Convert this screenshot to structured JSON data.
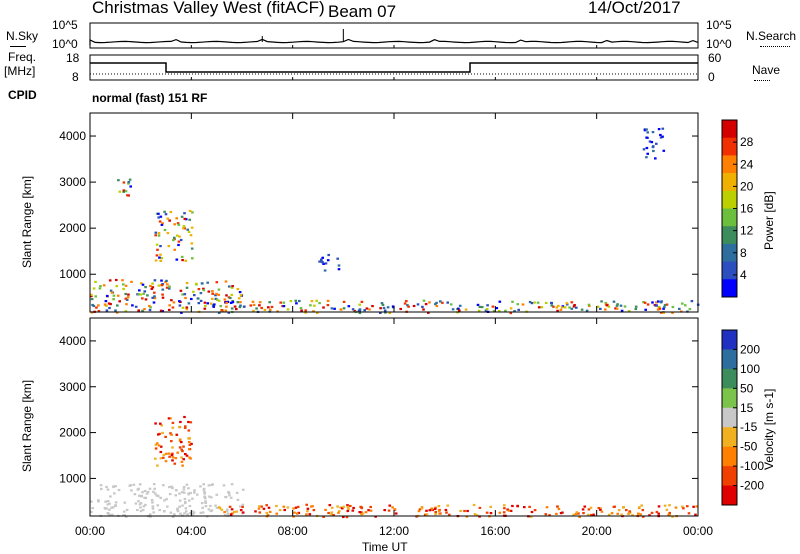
{
  "header": {
    "station": "Christmas Valley West (fitACF)",
    "beam": "Beam 07",
    "date": "14/Oct/2017"
  },
  "top_panels": {
    "nsky_label": "N.Sky",
    "nsky_ticks": [
      "10^5",
      "10^0"
    ],
    "nsearch_label": "N.Search",
    "nsearch_ticks": [
      "10^5",
      "10^0"
    ],
    "freq_label_1": "Freq.",
    "freq_label_2": "[MHz]",
    "freq_ticks": [
      "18",
      "8"
    ],
    "nave_label": "Nave",
    "nave_ticks": [
      "60",
      "0"
    ],
    "cpid_label": "CPID",
    "cpid_value": "normal (fast) 151 RF"
  },
  "chart_data": [
    {
      "type": "heatmap",
      "title": "Power",
      "ylabel": "Slant Range [km]",
      "ylim": [
        180,
        4500
      ],
      "yticks": [
        "1000",
        "2000",
        "3000",
        "4000"
      ],
      "xlim": [
        "00:00",
        "00:00"
      ],
      "colorbar_label": "Power [dB]",
      "colorbar_ticks": [
        "28",
        "24",
        "20",
        "16",
        "12",
        "8",
        "4"
      ],
      "colorbar_colors": [
        "#d40000",
        "#f03000",
        "#ff7f00",
        "#f0b000",
        "#bcd000",
        "#6cbf3c",
        "#3c8c5c",
        "#2e6e9e",
        "#2b4fbf",
        "#0000ff"
      ],
      "echo_regions": [
        {
          "t_start": 0.0,
          "t_end": 6.0,
          "r_min": 180,
          "r_max": 900,
          "level": "high"
        },
        {
          "t_start": 1.0,
          "t_end": 1.6,
          "r_min": 2700,
          "r_max": 3200,
          "level": "high"
        },
        {
          "t_start": 2.5,
          "t_end": 4.0,
          "r_min": 1300,
          "r_max": 2400,
          "level": "high"
        },
        {
          "t_start": 5.0,
          "t_end": 24.0,
          "r_min": 180,
          "r_max": 450,
          "level": "mixed"
        },
        {
          "t_start": 9.0,
          "t_end": 9.8,
          "r_min": 1100,
          "r_max": 1450,
          "level": "low"
        },
        {
          "t_start": 21.8,
          "t_end": 22.6,
          "r_min": 3500,
          "r_max": 4200,
          "level": "low"
        }
      ]
    },
    {
      "type": "heatmap",
      "title": "Velocity",
      "ylabel": "Slant Range [km]",
      "ylim": [
        180,
        4500
      ],
      "yticks": [
        "1000",
        "2000",
        "3000",
        "4000"
      ],
      "xlim": [
        "00:00",
        "00:00"
      ],
      "colorbar_label": "Velocity [m s-1]",
      "colorbar_ticks": [
        "200",
        "100",
        "50",
        "15",
        "-15",
        "-50",
        "-100",
        "-200"
      ],
      "colorbar_colors": [
        "#2030c0",
        "#2e6e9e",
        "#3c8c5c",
        "#7cc34c",
        "#c8c8c8",
        "#f0b020",
        "#ff8000",
        "#f04000",
        "#e00000"
      ],
      "echo_regions": [
        {
          "t_start": 0.0,
          "t_end": 6.0,
          "r_min": 180,
          "r_max": 900,
          "level": "low-velocity"
        },
        {
          "t_start": 2.5,
          "t_end": 4.0,
          "r_min": 1300,
          "r_max": 2400,
          "level": "negative"
        },
        {
          "t_start": 5.0,
          "t_end": 24.0,
          "r_min": 180,
          "r_max": 450,
          "level": "negative"
        }
      ]
    }
  ],
  "time_axis": {
    "ticks": [
      "00:00",
      "04:00",
      "08:00",
      "12:00",
      "16:00",
      "20:00",
      "00:00"
    ],
    "label": "Time UT"
  }
}
